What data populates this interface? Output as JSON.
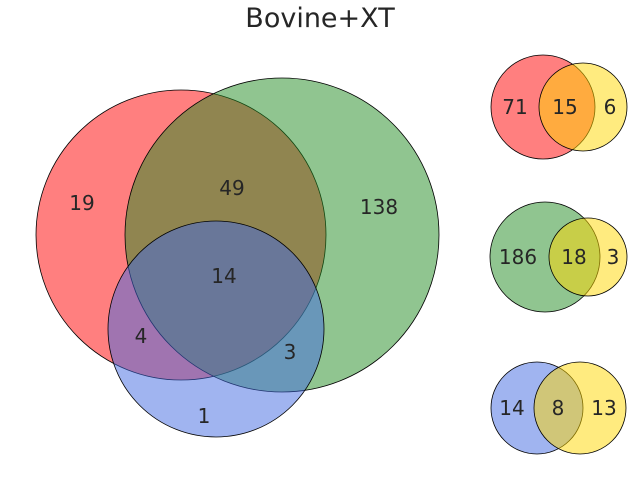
{
  "title": "Bovine+XT",
  "colors": {
    "red": "#ff0000",
    "green": "#228b22",
    "blue": "#4169e1",
    "yellow": "#ffd700",
    "outline": "#000000",
    "text": "#262626"
  },
  "main_venn": {
    "sets": [
      "red",
      "green",
      "blue"
    ],
    "regions": {
      "red_only": "19",
      "red_green": "49",
      "green_only": "138",
      "red_green_blue": "14",
      "red_blue": "4",
      "green_blue": "3",
      "blue_only": "1"
    }
  },
  "small_venns": [
    {
      "left_color": "red",
      "right_color": "yellow",
      "left_only": "71",
      "overlap": "15",
      "right_only": "6"
    },
    {
      "left_color": "green",
      "right_color": "yellow",
      "left_only": "186",
      "overlap": "18",
      "right_only": "3"
    },
    {
      "left_color": "blue",
      "right_color": "yellow",
      "left_only": "14",
      "overlap": "8",
      "right_only": "13"
    }
  ]
}
